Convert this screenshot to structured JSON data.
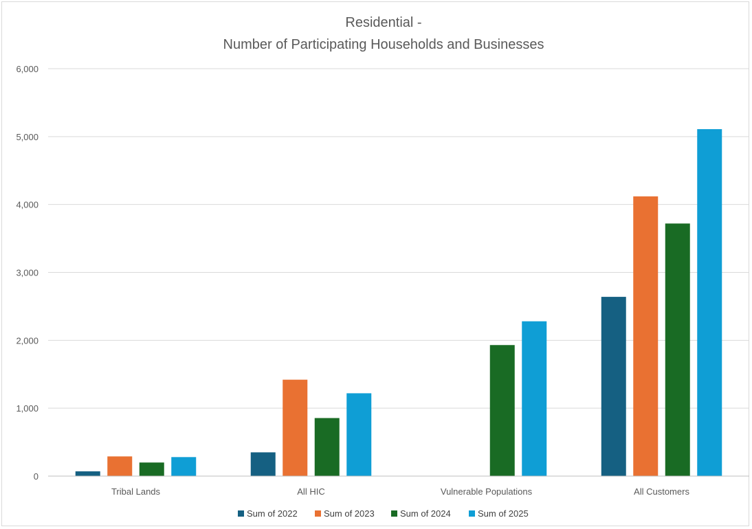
{
  "chart_data": {
    "type": "bar",
    "title_lines": [
      "Residential -",
      "Number of Participating Households and Businesses"
    ],
    "categories": [
      "Tribal Lands",
      "All HIC",
      "Vulnerable Populations",
      "All Customers"
    ],
    "series": [
      {
        "name": "Sum of 2022",
        "color": "#156082",
        "values": [
          70,
          350,
          0,
          2640
        ]
      },
      {
        "name": "Sum of 2023",
        "color": "#E97132",
        "values": [
          290,
          1420,
          0,
          4120
        ]
      },
      {
        "name": "Sum of 2024",
        "color": "#196B24",
        "values": [
          200,
          855,
          1930,
          3720
        ]
      },
      {
        "name": "Sum of 2025",
        "color": "#0F9ED5",
        "values": [
          280,
          1220,
          2280,
          5110
        ]
      }
    ],
    "ylim": [
      0,
      6000
    ],
    "yticks": [
      0,
      1000,
      2000,
      3000,
      4000,
      5000,
      6000
    ],
    "ytick_labels": [
      "0",
      "1,000",
      "2,000",
      "3,000",
      "4,000",
      "5,000",
      "6,000"
    ],
    "grid": true,
    "legend_position": "bottom"
  }
}
